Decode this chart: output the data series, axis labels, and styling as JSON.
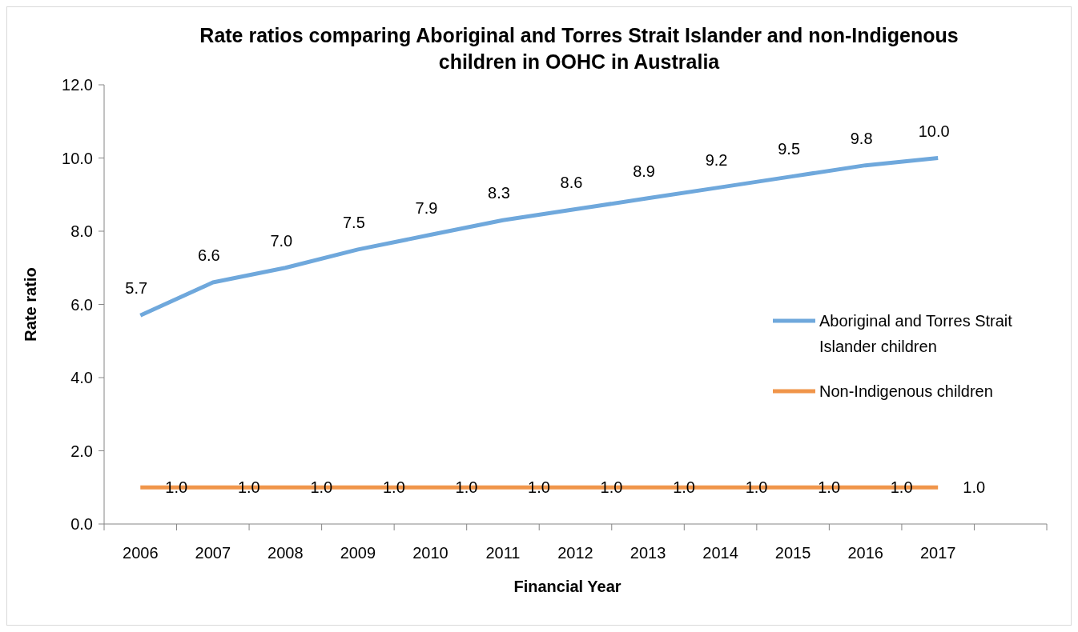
{
  "chart_data": {
    "type": "line",
    "title": "Rate ratios comparing Aboriginal and Torres Strait Islander and non-Indigenous children in OOHC in Australia",
    "xlabel": "Financial Year",
    "ylabel": "Rate ratio",
    "categories": [
      "2006",
      "2007",
      "2008",
      "2009",
      "2010",
      "2011",
      "2012",
      "2013",
      "2014",
      "2015",
      "2016",
      "2017",
      null
    ],
    "series": [
      {
        "name": "Aboriginal and Torres Strait Islander children",
        "color": "#6fa8dc",
        "values": [
          5.7,
          6.6,
          7.0,
          7.5,
          7.9,
          8.3,
          8.6,
          8.9,
          9.2,
          9.5,
          9.8,
          10.0,
          null
        ],
        "value_labels": [
          "5.7",
          "6.6",
          "7.0",
          "7.5",
          "7.9",
          "8.3",
          "8.6",
          "8.9",
          "9.2",
          "9.5",
          "9.8",
          "10.0",
          null
        ]
      },
      {
        "name": "Non-Indigenous children",
        "color": "#f0954a",
        "values": [
          1.0,
          1.0,
          1.0,
          1.0,
          1.0,
          1.0,
          1.0,
          1.0,
          1.0,
          1.0,
          1.0,
          1.0,
          null
        ],
        "value_labels": [
          "1.0",
          "1.0",
          "1.0",
          "1.0",
          "1.0",
          "1.0",
          "1.0",
          "1.0",
          "1.0",
          "1.0",
          "1.0",
          "1.0",
          null
        ]
      }
    ],
    "ylim": [
      0,
      12
    ],
    "yticks": [
      {
        "value": 0,
        "label": "0.0"
      },
      {
        "value": 2,
        "label": "2.0"
      },
      {
        "value": 4,
        "label": "4.0"
      },
      {
        "value": 6,
        "label": "6.0"
      },
      {
        "value": 8,
        "label": "8.0"
      },
      {
        "value": 10,
        "label": "10.0"
      },
      {
        "value": 12,
        "label": "12.0"
      }
    ],
    "legend": "right",
    "grid": false,
    "marker": "none",
    "line_style": "solid"
  }
}
